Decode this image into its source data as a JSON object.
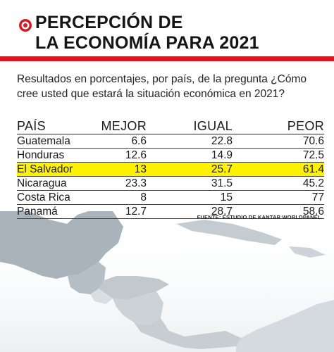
{
  "header": {
    "title": "PERCEPCIÓN DE\nLA ECONOMÍA PARA 2021",
    "brand_color": "#d71920",
    "logo_icon": "circle-target-icon"
  },
  "subtitle": "Resultados en porcentajes, por país, de la pregunta ¿Cómo cree usted que estará la situación económica en 2021?",
  "source": "FUENTE: ESTUDIO DE KANTAR WORLDPANEL.",
  "highlight_color": "#fff200",
  "chart_data": {
    "type": "table",
    "columns": [
      "PAÍS",
      "MEJOR",
      "IGUAL",
      "PEOR"
    ],
    "rows": [
      {
        "country": "Guatemala",
        "mejor": "6.6",
        "igual": "22.8",
        "peor": "70.6",
        "highlight": false
      },
      {
        "country": "Honduras",
        "mejor": "12.6",
        "igual": "14.9",
        "peor": "72.5",
        "highlight": false
      },
      {
        "country": "El Salvador",
        "mejor": "13",
        "igual": "25.7",
        "peor": "61.4",
        "highlight": true
      },
      {
        "country": "Nicaragua",
        "mejor": "23.3",
        "igual": "31.5",
        "peor": "45.2",
        "highlight": false
      },
      {
        "country": "Costa Rica",
        "mejor": "8",
        "igual": "15",
        "peor": "77",
        "highlight": false
      },
      {
        "country": "Panamá",
        "mejor": "12.7",
        "igual": "28.7",
        "peor": "58.6",
        "highlight": false
      }
    ]
  }
}
